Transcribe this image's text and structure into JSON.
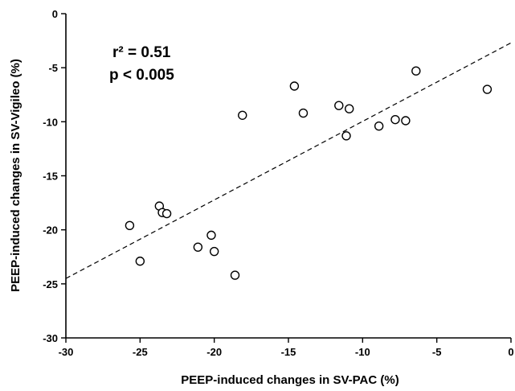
{
  "chart_data": {
    "type": "scatter",
    "xlabel": "PEEP-induced changes in SV-PAC (%)",
    "ylabel": "PEEP-induced changes in SV-Vigileo (%)",
    "xlim": [
      -30,
      0
    ],
    "ylim": [
      -30,
      0
    ],
    "xticks": [
      -30,
      -25,
      -20,
      -15,
      -10,
      -5,
      0
    ],
    "yticks": [
      -30,
      -25,
      -20,
      -15,
      -10,
      -5,
      0
    ],
    "grid": false,
    "annotations": [
      "r² = 0.51",
      "p < 0.005"
    ],
    "series": [
      {
        "points": [
          {
            "x": -25.7,
            "y": -19.6
          },
          {
            "x": -25.0,
            "y": -22.9
          },
          {
            "x": -23.7,
            "y": -17.8
          },
          {
            "x": -23.5,
            "y": -18.4
          },
          {
            "x": -23.2,
            "y": -18.5
          },
          {
            "x": -21.1,
            "y": -21.6
          },
          {
            "x": -20.2,
            "y": -20.5
          },
          {
            "x": -20.0,
            "y": -22.0
          },
          {
            "x": -18.6,
            "y": -24.2
          },
          {
            "x": -18.1,
            "y": -9.4
          },
          {
            "x": -14.6,
            "y": -6.7
          },
          {
            "x": -14.0,
            "y": -9.2
          },
          {
            "x": -11.6,
            "y": -8.5
          },
          {
            "x": -11.1,
            "y": -11.3
          },
          {
            "x": -10.9,
            "y": -8.8
          },
          {
            "x": -8.9,
            "y": -10.4
          },
          {
            "x": -7.8,
            "y": -9.8
          },
          {
            "x": -7.1,
            "y": -9.9
          },
          {
            "x": -6.4,
            "y": -5.3
          },
          {
            "x": -1.6,
            "y": -7.0
          }
        ]
      }
    ],
    "trendline": {
      "style": "dashed",
      "from": {
        "x": -30,
        "y": -24.5
      },
      "to": {
        "x": 0,
        "y": -2.7
      }
    }
  }
}
